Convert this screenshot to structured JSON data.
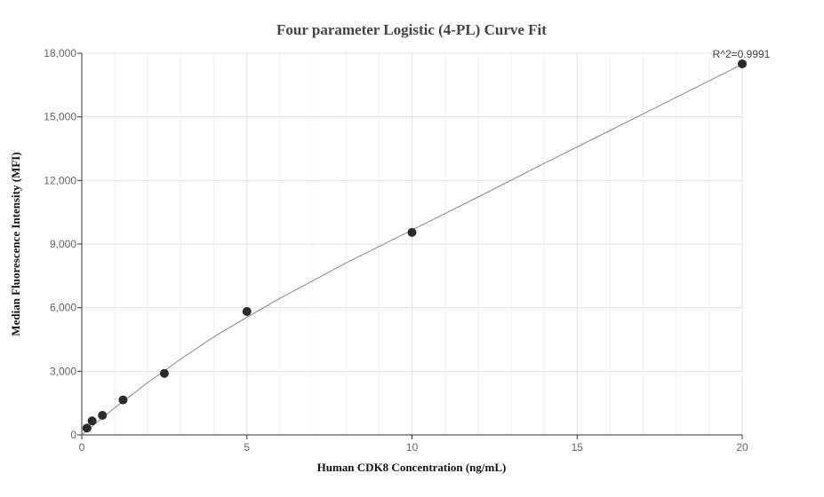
{
  "chart_data": {
    "type": "scatter",
    "title": "Four parameter Logistic (4-PL) Curve Fit",
    "xlabel": "Human CDK8 Concentration (ng/mL)",
    "ylabel": "Median Fluorescence Intensity (MFI)",
    "xlim": [
      0,
      20
    ],
    "ylim": [
      0,
      18000
    ],
    "x_ticks": [
      0,
      5,
      10,
      15,
      20
    ],
    "y_ticks": [
      0,
      3000,
      6000,
      9000,
      12000,
      15000,
      18000
    ],
    "x_tick_labels": [
      "0",
      "5",
      "10",
      "15",
      "20"
    ],
    "y_tick_labels": [
      "0",
      "3,000",
      "6,000",
      "9,000",
      "12,000",
      "15,000",
      "18,000"
    ],
    "grid": true,
    "annotation": "R^2=0.9991",
    "point_color": "#2b2b2b",
    "curve_color": "#888888",
    "series": [
      {
        "points": [
          {
            "x": 0.156,
            "y": 320
          },
          {
            "x": 0.3125,
            "y": 660
          },
          {
            "x": 0.625,
            "y": 920
          },
          {
            "x": 1.25,
            "y": 1650
          },
          {
            "x": 2.5,
            "y": 2900
          },
          {
            "x": 5,
            "y": 5820
          },
          {
            "x": 10,
            "y": 9550
          },
          {
            "x": 20,
            "y": 17500
          }
        ]
      }
    ],
    "fit_curve": {
      "x": [
        0,
        1,
        2,
        3,
        4,
        5,
        6,
        8,
        10,
        12,
        14,
        16,
        18,
        20
      ],
      "y": [
        0,
        1280,
        2470,
        3580,
        4620,
        5550,
        6440,
        8110,
        9660,
        11220,
        12800,
        14360,
        15920,
        17480
      ]
    }
  }
}
